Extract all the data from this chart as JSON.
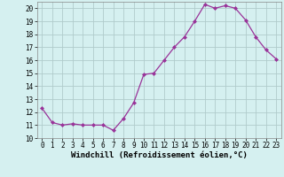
{
  "x": [
    0,
    1,
    2,
    3,
    4,
    5,
    6,
    7,
    8,
    9,
    10,
    11,
    12,
    13,
    14,
    15,
    16,
    17,
    18,
    19,
    20,
    21,
    22,
    23
  ],
  "y": [
    12.3,
    11.2,
    11.0,
    11.1,
    11.0,
    11.0,
    11.0,
    10.6,
    11.5,
    12.7,
    14.9,
    15.0,
    16.0,
    17.0,
    17.8,
    19.0,
    20.3,
    20.0,
    20.2,
    20.0,
    19.1,
    17.8,
    16.8,
    16.1
  ],
  "line_color": "#993399",
  "marker": "D",
  "marker_size": 2,
  "background_color": "#d5f0f0",
  "grid_color": "#b0cccc",
  "xlabel": "Windchill (Refroidissement éolien,°C)",
  "ylabel": "",
  "xlim": [
    -0.5,
    23.5
  ],
  "ylim": [
    10.0,
    20.5
  ],
  "yticks": [
    10,
    11,
    12,
    13,
    14,
    15,
    16,
    17,
    18,
    19,
    20
  ],
  "xticks": [
    0,
    1,
    2,
    3,
    4,
    5,
    6,
    7,
    8,
    9,
    10,
    11,
    12,
    13,
    14,
    15,
    16,
    17,
    18,
    19,
    20,
    21,
    22,
    23
  ],
  "tick_label_size": 5.5,
  "xlabel_size": 6.5,
  "line_width": 0.9
}
